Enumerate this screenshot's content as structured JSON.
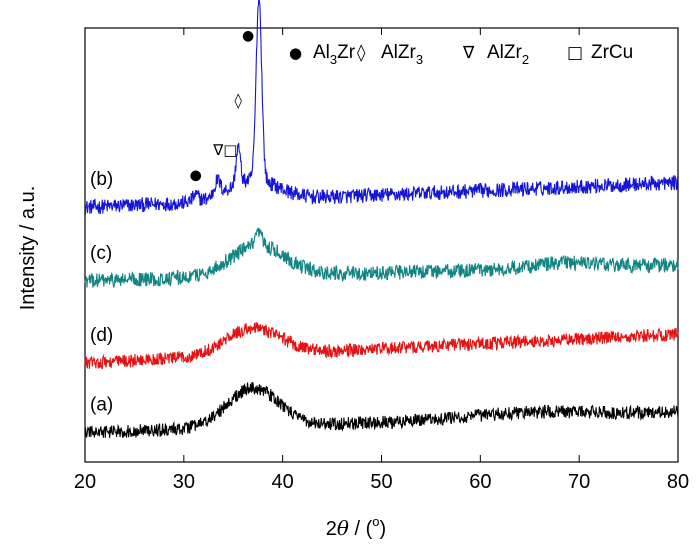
{
  "chart_data": {
    "type": "line",
    "title": "",
    "xlabel": {
      "prefix": "2",
      "theta": "θ",
      "unit": " / (",
      "degree": "o",
      "close": ")"
    },
    "ylabel": "Intensity / a.u.",
    "xlim": [
      20,
      80
    ],
    "xticks": [
      "20",
      "30",
      "40",
      "50",
      "60",
      "70",
      "80"
    ],
    "grid": false,
    "legend_position": "top-right",
    "legend": [
      {
        "symbol": "●",
        "main": "Al",
        "sub": "3",
        "tail": "Zr"
      },
      {
        "symbol": "◊",
        "main": "AlZr",
        "sub": "3",
        "tail": ""
      },
      {
        "symbol": "∇",
        "main": "AlZr",
        "sub": "2",
        "tail": ""
      },
      {
        "symbol": "□",
        "main": "ZrCu",
        "sub": "",
        "tail": ""
      }
    ],
    "series": [
      {
        "name": "(b)",
        "color": "#1515d8",
        "offset": 0.56,
        "baseline": 0.02,
        "slope": 0.06,
        "noise": 0.018,
        "peaks": [
          {
            "x": 37.6,
            "height": 0.45,
            "width": 0.28
          },
          {
            "x": 35.5,
            "height": 0.09,
            "width": 0.22
          },
          {
            "x": 33.4,
            "height": 0.035,
            "width": 0.3
          },
          {
            "x": 31.2,
            "height": 0.015,
            "width": 0.3
          },
          {
            "x": 37.0,
            "height": 0.05,
            "width": 2.5
          }
        ]
      },
      {
        "name": "(c)",
        "color": "#128484",
        "offset": 0.4,
        "baseline": 0.0,
        "slope": 0.04,
        "noise": 0.018,
        "peaks": [
          {
            "x": 37.5,
            "height": 0.075,
            "width": 2.8
          },
          {
            "x": 37.6,
            "height": 0.03,
            "width": 0.3
          },
          {
            "x": 68.5,
            "height": 0.012,
            "width": 3.0
          }
        ]
      },
      {
        "name": "(d)",
        "color": "#e41212",
        "offset": 0.2,
        "baseline": 0.0,
        "slope": 0.07,
        "noise": 0.016,
        "peaks": [
          {
            "x": 37.0,
            "height": 0.065,
            "width": 2.8
          }
        ]
      },
      {
        "name": "(a)",
        "color": "#000000",
        "offset": 0.03,
        "baseline": 0.0,
        "slope": 0.05,
        "noise": 0.016,
        "peaks": [
          {
            "x": 37.0,
            "height": 0.095,
            "width": 2.6
          },
          {
            "x": 65.0,
            "height": 0.012,
            "width": 6.0
          }
        ]
      }
    ],
    "peak_markers": [
      {
        "symbol": "●",
        "x": 31.2,
        "y": 0.66
      },
      {
        "symbol": "∇□",
        "x": 34.2,
        "y": 0.72
      },
      {
        "symbol": "◊",
        "x": 35.5,
        "y": 0.84
      },
      {
        "symbol": "●",
        "x": 36.5,
        "y": 1.0
      }
    ]
  }
}
